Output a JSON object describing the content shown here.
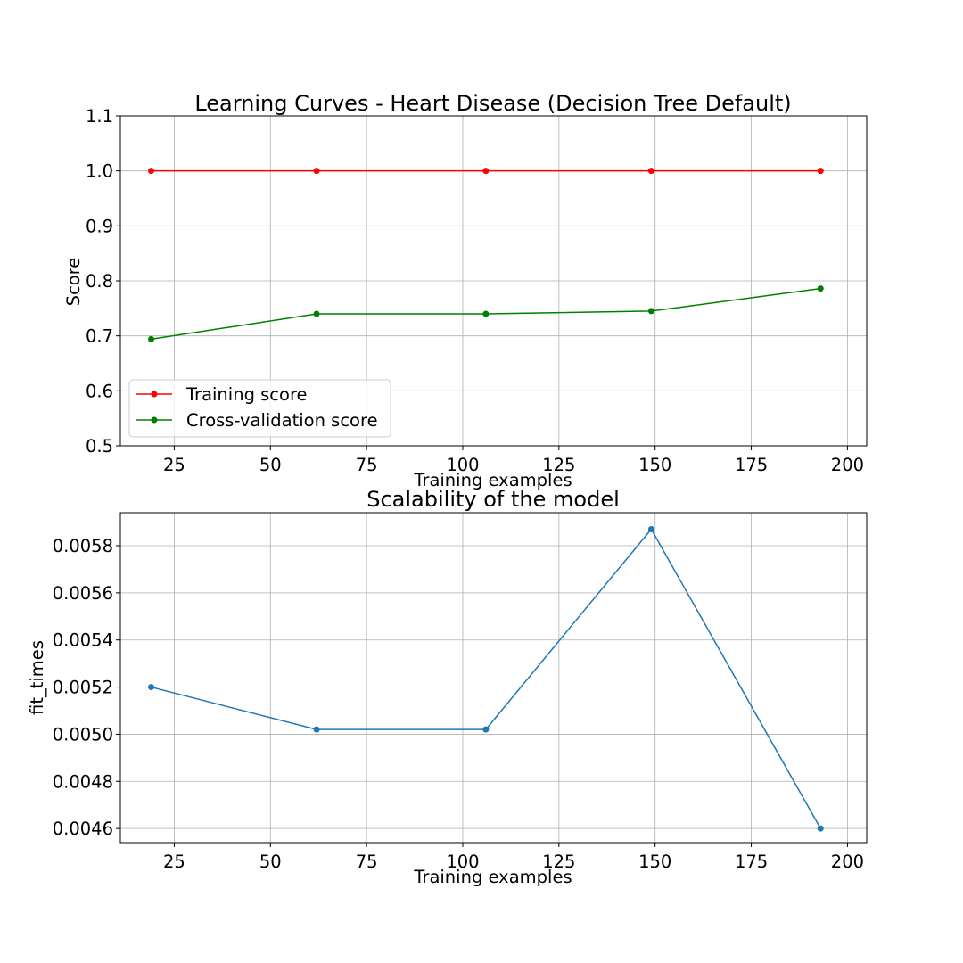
{
  "chart_data": [
    {
      "type": "line",
      "title": "Learning Curves - Heart Disease (Decision Tree Default)",
      "xlabel": "Training examples",
      "ylabel": "Score",
      "xlim": [
        11,
        205
      ],
      "ylim": [
        0.5,
        1.1
      ],
      "xticks": [
        25,
        50,
        75,
        100,
        125,
        150,
        175,
        200
      ],
      "yticks": [
        0.5,
        0.6,
        0.7,
        0.8,
        0.9,
        1.0,
        1.1
      ],
      "ytick_decimals": 1,
      "grid": true,
      "legend_position": "lower left",
      "x": [
        19,
        62,
        106,
        149,
        193
      ],
      "series": [
        {
          "name": "Training score",
          "color": "#ff0000",
          "values": [
            1.0,
            1.0,
            1.0,
            1.0,
            1.0
          ]
        },
        {
          "name": "Cross-validation score",
          "color": "#008000",
          "values": [
            0.694,
            0.74,
            0.74,
            0.745,
            0.786
          ]
        }
      ]
    },
    {
      "type": "line",
      "title": "Scalability of the model",
      "xlabel": "Training examples",
      "ylabel": "fit_times",
      "xlim": [
        11,
        205
      ],
      "ylim": [
        0.00454,
        0.00594
      ],
      "xticks": [
        25,
        50,
        75,
        100,
        125,
        150,
        175,
        200
      ],
      "yticks": [
        0.0046,
        0.0048,
        0.005,
        0.0052,
        0.0054,
        0.0056,
        0.0058
      ],
      "ytick_decimals": 4,
      "grid": true,
      "x": [
        19,
        62,
        106,
        149,
        193
      ],
      "series": [
        {
          "color": "#1f77b4",
          "values": [
            0.0052,
            0.00502,
            0.00502,
            0.00587,
            0.0046
          ]
        }
      ]
    }
  ]
}
